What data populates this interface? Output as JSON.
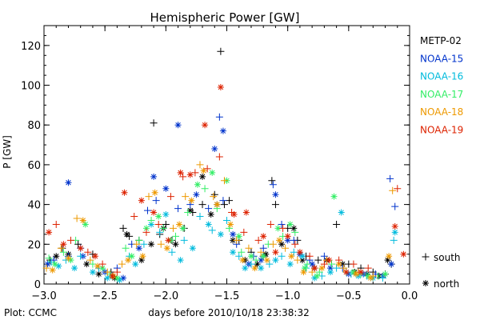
{
  "chart_data": {
    "type": "scatter",
    "title": "Hemispheric Power [GW]",
    "xlabel": "days before 2010/10/18 23:38:32",
    "ylabel": "P [GW]",
    "footer": "Plot: CCMC",
    "xlim": [
      -3.0,
      0.0
    ],
    "ylim": [
      0,
      130
    ],
    "x_ticks": [
      -3.0,
      -2.5,
      -2.0,
      -1.5,
      -1.0,
      -0.5,
      0.0
    ],
    "x_tick_labels": [
      "−3.0",
      "−2.5",
      "−2.0",
      "−1.5",
      "−1.0",
      "−0.5",
      "0.0"
    ],
    "y_ticks": [
      0,
      20,
      40,
      60,
      80,
      100,
      120
    ],
    "y_tick_labels": [
      "0",
      "20",
      "40",
      "60",
      "80",
      "100",
      "120"
    ],
    "legend_position": "right",
    "marker_legend": [
      {
        "symbol": "+",
        "label": "south"
      },
      {
        "symbol": "*",
        "label": "north"
      }
    ],
    "series": [
      {
        "name": "METP-02",
        "color": "#000000",
        "south": [
          [
            -2.95,
            12
          ],
          [
            -2.85,
            18
          ],
          [
            -2.72,
            20
          ],
          [
            -2.6,
            15
          ],
          [
            -2.45,
            6
          ],
          [
            -2.35,
            28
          ],
          [
            -2.3,
            24
          ],
          [
            -2.22,
            22
          ],
          [
            -2.1,
            81
          ],
          [
            -2.05,
            25
          ],
          [
            -2.0,
            30
          ],
          [
            -1.95,
            22
          ],
          [
            -1.85,
            28
          ],
          [
            -1.78,
            36
          ],
          [
            -1.7,
            40
          ],
          [
            -1.6,
            45
          ],
          [
            -1.55,
            117
          ],
          [
            -1.52,
            40
          ],
          [
            -1.48,
            42
          ],
          [
            -1.4,
            22
          ],
          [
            -1.3,
            16
          ],
          [
            -1.2,
            14
          ],
          [
            -1.13,
            52
          ],
          [
            -1.1,
            40
          ],
          [
            -1.0,
            28
          ],
          [
            -0.92,
            22
          ],
          [
            -0.85,
            14
          ],
          [
            -0.75,
            12
          ],
          [
            -0.6,
            30
          ],
          [
            -0.5,
            10
          ],
          [
            -0.4,
            8
          ],
          [
            -0.3,
            6
          ],
          [
            -0.2,
            5
          ],
          [
            -0.15,
            10
          ]
        ],
        "north": [
          [
            -2.9,
            14
          ],
          [
            -2.8,
            15
          ],
          [
            -2.65,
            10
          ],
          [
            -2.55,
            5
          ],
          [
            -2.42,
            3
          ],
          [
            -2.32,
            25
          ],
          [
            -2.2,
            12
          ],
          [
            -2.12,
            20
          ],
          [
            -2.02,
            28
          ],
          [
            -1.92,
            20
          ],
          [
            -1.8,
            37
          ],
          [
            -1.7,
            54
          ],
          [
            -1.63,
            35
          ],
          [
            -1.58,
            40
          ],
          [
            -1.45,
            22
          ],
          [
            -1.35,
            12
          ],
          [
            -1.25,
            10
          ],
          [
            -1.18,
            15
          ],
          [
            -1.05,
            20
          ],
          [
            -0.95,
            28
          ],
          [
            -0.88,
            12
          ],
          [
            -0.78,
            8
          ],
          [
            -0.68,
            12
          ],
          [
            -0.55,
            10
          ],
          [
            -0.45,
            6
          ],
          [
            -0.35,
            5
          ],
          [
            -0.25,
            4
          ],
          [
            -0.18,
            12
          ]
        ]
      },
      {
        "name": "NOAA-15",
        "color": "#0033cc",
        "south": [
          [
            -2.92,
            12
          ],
          [
            -2.8,
            14
          ],
          [
            -2.7,
            18
          ],
          [
            -2.55,
            8
          ],
          [
            -2.4,
            8
          ],
          [
            -2.28,
            20
          ],
          [
            -2.15,
            37
          ],
          [
            -2.08,
            42
          ],
          [
            -1.9,
            38
          ],
          [
            -1.8,
            40
          ],
          [
            -1.65,
            38
          ],
          [
            -1.56,
            84
          ],
          [
            -1.53,
            42
          ],
          [
            -1.42,
            20
          ],
          [
            -1.28,
            14
          ],
          [
            -1.2,
            18
          ],
          [
            -1.12,
            50
          ],
          [
            -1.05,
            30
          ],
          [
            -0.95,
            22
          ],
          [
            -0.82,
            12
          ],
          [
            -0.7,
            14
          ],
          [
            -0.55,
            8
          ],
          [
            -0.42,
            6
          ],
          [
            -0.28,
            5
          ],
          [
            -0.16,
            53
          ],
          [
            -0.12,
            39
          ]
        ],
        "north": [
          [
            -2.97,
            10
          ],
          [
            -2.8,
            51
          ],
          [
            -2.68,
            14
          ],
          [
            -2.5,
            6
          ],
          [
            -2.35,
            3
          ],
          [
            -2.22,
            18
          ],
          [
            -2.1,
            54
          ],
          [
            -2.0,
            48
          ],
          [
            -1.9,
            80
          ],
          [
            -1.75,
            45
          ],
          [
            -1.6,
            68
          ],
          [
            -1.53,
            77
          ],
          [
            -1.45,
            25
          ],
          [
            -1.32,
            10
          ],
          [
            -1.22,
            12
          ],
          [
            -1.1,
            45
          ],
          [
            -1.0,
            22
          ],
          [
            -0.9,
            15
          ],
          [
            -0.8,
            10
          ],
          [
            -0.65,
            8
          ],
          [
            -0.5,
            5
          ],
          [
            -0.38,
            5
          ],
          [
            -0.22,
            4
          ],
          [
            -0.15,
            10
          ]
        ]
      },
      {
        "name": "NOAA-16",
        "color": "#00bbdd",
        "south": [
          [
            -2.94,
            11
          ],
          [
            -2.82,
            12
          ],
          [
            -2.7,
            14
          ],
          [
            -2.55,
            8
          ],
          [
            -2.45,
            4
          ],
          [
            -2.3,
            14
          ],
          [
            -2.18,
            20
          ],
          [
            -2.05,
            26
          ],
          [
            -1.95,
            16
          ],
          [
            -1.85,
            22
          ],
          [
            -1.72,
            34
          ],
          [
            -1.62,
            27
          ],
          [
            -1.5,
            32
          ],
          [
            -1.4,
            14
          ],
          [
            -1.3,
            10
          ],
          [
            -1.15,
            10
          ],
          [
            -1.05,
            14
          ],
          [
            -0.95,
            16
          ],
          [
            -0.85,
            8
          ],
          [
            -0.72,
            4
          ],
          [
            -0.6,
            8
          ],
          [
            -0.48,
            5
          ],
          [
            -0.35,
            4
          ],
          [
            -0.22,
            3
          ],
          [
            -0.13,
            22
          ]
        ],
        "north": [
          [
            -2.88,
            9
          ],
          [
            -2.75,
            8
          ],
          [
            -2.6,
            6
          ],
          [
            -2.48,
            3
          ],
          [
            -2.38,
            2
          ],
          [
            -2.25,
            10
          ],
          [
            -2.12,
            30
          ],
          [
            -2.0,
            35
          ],
          [
            -1.88,
            12
          ],
          [
            -1.78,
            18
          ],
          [
            -1.65,
            30
          ],
          [
            -1.55,
            25
          ],
          [
            -1.45,
            16
          ],
          [
            -1.35,
            8
          ],
          [
            -1.22,
            8
          ],
          [
            -1.1,
            12
          ],
          [
            -0.98,
            10
          ],
          [
            -0.88,
            14
          ],
          [
            -0.78,
            3
          ],
          [
            -0.65,
            6
          ],
          [
            -0.56,
            36
          ],
          [
            -0.42,
            4
          ],
          [
            -0.3,
            3
          ],
          [
            -0.12,
            26
          ]
        ]
      },
      {
        "name": "NOAA-17",
        "color": "#33ee66",
        "south": [
          [
            -2.96,
            13
          ],
          [
            -2.84,
            16
          ],
          [
            -2.74,
            22
          ],
          [
            -2.6,
            10
          ],
          [
            -2.46,
            5
          ],
          [
            -2.33,
            18
          ],
          [
            -2.22,
            22
          ],
          [
            -2.12,
            32
          ],
          [
            -2.02,
            28
          ],
          [
            -1.92,
            24
          ],
          [
            -1.82,
            36
          ],
          [
            -1.68,
            48
          ],
          [
            -1.58,
            38
          ],
          [
            -1.48,
            28
          ],
          [
            -1.38,
            16
          ],
          [
            -1.26,
            12
          ],
          [
            -1.16,
            20
          ],
          [
            -1.04,
            24
          ],
          [
            -0.94,
            26
          ],
          [
            -0.84,
            10
          ],
          [
            -0.74,
            6
          ],
          [
            -0.64,
            10
          ],
          [
            -0.52,
            6
          ],
          [
            -0.4,
            5
          ],
          [
            -0.26,
            4
          ]
        ],
        "north": [
          [
            -2.91,
            10
          ],
          [
            -2.78,
            12
          ],
          [
            -2.66,
            30
          ],
          [
            -2.52,
            8
          ],
          [
            -2.4,
            3
          ],
          [
            -2.28,
            14
          ],
          [
            -2.16,
            28
          ],
          [
            -2.06,
            34
          ],
          [
            -1.96,
            22
          ],
          [
            -1.86,
            28
          ],
          [
            -1.74,
            50
          ],
          [
            -1.62,
            56
          ],
          [
            -1.5,
            52
          ],
          [
            -1.4,
            24
          ],
          [
            -1.3,
            14
          ],
          [
            -1.2,
            14
          ],
          [
            -1.08,
            28
          ],
          [
            -0.98,
            30
          ],
          [
            -0.86,
            8
          ],
          [
            -0.76,
            4
          ],
          [
            -0.62,
            44
          ],
          [
            -0.46,
            6
          ],
          [
            -0.34,
            4
          ],
          [
            -0.2,
            5
          ]
        ]
      },
      {
        "name": "NOAA-18",
        "color": "#ee9900",
        "south": [
          [
            -2.98,
            8
          ],
          [
            -2.86,
            18
          ],
          [
            -2.73,
            33
          ],
          [
            -2.62,
            12
          ],
          [
            -2.48,
            6
          ],
          [
            -2.36,
            10
          ],
          [
            -2.24,
            20
          ],
          [
            -2.14,
            44
          ],
          [
            -2.04,
            20
          ],
          [
            -1.94,
            28
          ],
          [
            -1.84,
            44
          ],
          [
            -1.72,
            60
          ],
          [
            -1.61,
            44
          ],
          [
            -1.52,
            52
          ],
          [
            -1.42,
            22
          ],
          [
            -1.32,
            18
          ],
          [
            -1.22,
            16
          ],
          [
            -1.12,
            20
          ],
          [
            -1.02,
            18
          ],
          [
            -0.92,
            12
          ],
          [
            -0.8,
            6
          ],
          [
            -0.68,
            12
          ],
          [
            -0.54,
            8
          ],
          [
            -0.42,
            6
          ],
          [
            -0.3,
            4
          ],
          [
            -0.14,
            47
          ]
        ],
        "north": [
          [
            -2.93,
            7
          ],
          [
            -2.8,
            13
          ],
          [
            -2.68,
            32
          ],
          [
            -2.56,
            9
          ],
          [
            -2.43,
            4
          ],
          [
            -2.31,
            12
          ],
          [
            -2.19,
            14
          ],
          [
            -2.09,
            46
          ],
          [
            -1.99,
            18
          ],
          [
            -1.89,
            30
          ],
          [
            -1.79,
            42
          ],
          [
            -1.69,
            57
          ],
          [
            -1.58,
            40
          ],
          [
            -1.47,
            30
          ],
          [
            -1.37,
            12
          ],
          [
            -1.27,
            8
          ],
          [
            -1.17,
            12
          ],
          [
            -1.07,
            22
          ],
          [
            -0.97,
            14
          ],
          [
            -0.87,
            6
          ],
          [
            -0.72,
            8
          ],
          [
            -0.58,
            10
          ],
          [
            -0.44,
            5
          ],
          [
            -0.32,
            3
          ],
          [
            -0.17,
            14
          ]
        ]
      },
      {
        "name": "NOAA-19",
        "color": "#dd2200",
        "south": [
          [
            -2.9,
            30
          ],
          [
            -2.78,
            22
          ],
          [
            -2.64,
            16
          ],
          [
            -2.52,
            10
          ],
          [
            -2.4,
            6
          ],
          [
            -2.26,
            34
          ],
          [
            -2.16,
            26
          ],
          [
            -2.06,
            30
          ],
          [
            -1.96,
            44
          ],
          [
            -1.86,
            54
          ],
          [
            -1.76,
            56
          ],
          [
            -1.66,
            58
          ],
          [
            -1.56,
            64
          ],
          [
            -1.46,
            36
          ],
          [
            -1.36,
            26
          ],
          [
            -1.24,
            22
          ],
          [
            -1.14,
            30
          ],
          [
            -1.04,
            28
          ],
          [
            -0.94,
            20
          ],
          [
            -0.82,
            14
          ],
          [
            -0.7,
            10
          ],
          [
            -0.58,
            12
          ],
          [
            -0.46,
            10
          ],
          [
            -0.34,
            8
          ],
          [
            -0.1,
            48
          ]
        ],
        "north": [
          [
            -2.96,
            26
          ],
          [
            -2.84,
            20
          ],
          [
            -2.7,
            18
          ],
          [
            -2.58,
            14
          ],
          [
            -2.44,
            4
          ],
          [
            -2.34,
            46
          ],
          [
            -2.2,
            42
          ],
          [
            -2.1,
            36
          ],
          [
            -1.98,
            22
          ],
          [
            -1.88,
            56
          ],
          [
            -1.8,
            55
          ],
          [
            -1.68,
            80
          ],
          [
            -1.55,
            99
          ],
          [
            -1.44,
            35
          ],
          [
            -1.34,
            36
          ],
          [
            -1.2,
            24
          ],
          [
            -1.1,
            16
          ],
          [
            -1.0,
            24
          ],
          [
            -0.9,
            16
          ],
          [
            -0.78,
            8
          ],
          [
            -0.66,
            12
          ],
          [
            -0.52,
            6
          ],
          [
            -0.4,
            6
          ],
          [
            -0.12,
            29
          ],
          [
            -0.05,
            15
          ]
        ]
      }
    ]
  }
}
